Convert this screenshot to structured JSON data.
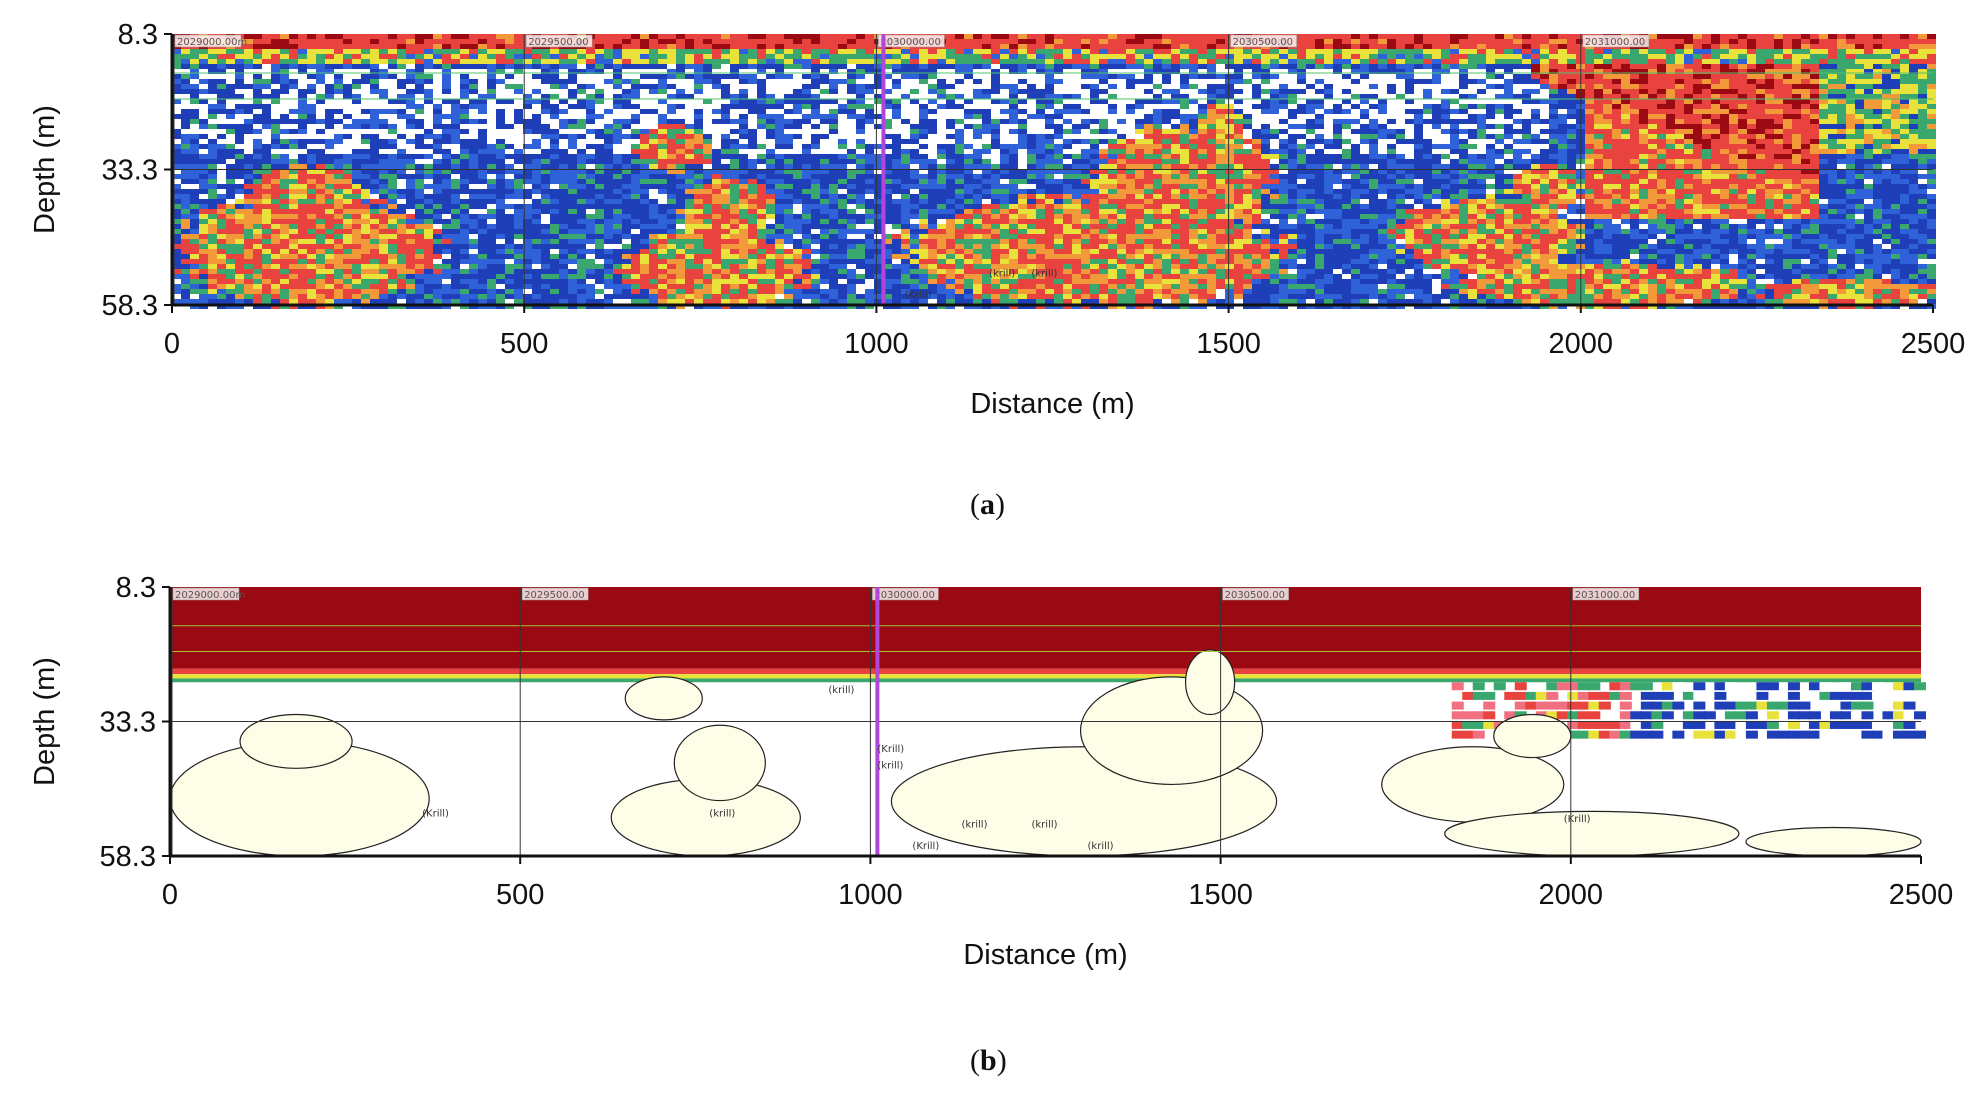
{
  "chart_data": [
    {
      "type": "heatmap",
      "panel": "a",
      "xlabel": "Distance (m)",
      "ylabel": "Depth (m)",
      "xlim": [
        0,
        2500
      ],
      "ylim": [
        58.3,
        8.3
      ],
      "x_ticks": [
        "0",
        "500",
        "1000",
        "1500",
        "2000",
        "2500"
      ],
      "y_ticks": [
        "8.3",
        "33.3",
        "58.3"
      ],
      "y_tick_values": [
        8.3,
        33.3,
        58.3
      ],
      "x_tick_values": [
        0,
        500,
        1000,
        1500,
        2000,
        2500
      ],
      "markers": [
        {
          "x": 0,
          "label": "2029000.00m"
        },
        {
          "x": 500,
          "label": "2029500.00"
        },
        {
          "x": 1000,
          "label": "2030000.00"
        },
        {
          "x": 1500,
          "label": "2030500.00"
        },
        {
          "x": 2000,
          "label": "2031000.00"
        }
      ],
      "grid": true,
      "colors": [
        "#1f3fb8",
        "#2f62d8",
        "#3aa86e",
        "#e8e23a",
        "#f29a3a",
        "#e8433f",
        "#9b0a12",
        "#ffffff"
      ],
      "krill_labels": [
        "(krill)",
        "(krill)",
        "(Krill)"
      ],
      "caption_letter": "a"
    },
    {
      "type": "heatmap",
      "panel": "b",
      "xlabel": "Distance (m)",
      "ylabel": "Depth (m)",
      "xlim": [
        0,
        2500
      ],
      "ylim": [
        58.3,
        8.3
      ],
      "x_ticks": [
        "0",
        "500",
        "1000",
        "1500",
        "2000",
        "2500"
      ],
      "y_ticks": [
        "8.3",
        "33.3",
        "58.3"
      ],
      "y_tick_values": [
        8.3,
        33.3,
        58.3
      ],
      "x_tick_values": [
        0,
        500,
        1000,
        1500,
        2000,
        2500
      ],
      "markers": [
        {
          "x": 0,
          "label": "2029000.00m"
        },
        {
          "x": 500,
          "label": "2029500.00"
        },
        {
          "x": 1000,
          "label": "2030000.00"
        },
        {
          "x": 1500,
          "label": "2030500.00"
        },
        {
          "x": 2000,
          "label": "2031000.00"
        }
      ],
      "grid": true,
      "colors": [
        "#9b0a12",
        "#ffffff",
        "#fdfde8",
        "#1f3fb8",
        "#3aa86e",
        "#e8e23a",
        "#f07080",
        "#e8433f"
      ],
      "krill_labels": [
        "(Krill)",
        "(krill)",
        "(krill)",
        "(Krill)",
        "(krill)",
        "(krill)",
        "(krill)",
        "(Krill)",
        "(Krill)",
        "(krill)"
      ],
      "caption_letter": "b"
    }
  ]
}
